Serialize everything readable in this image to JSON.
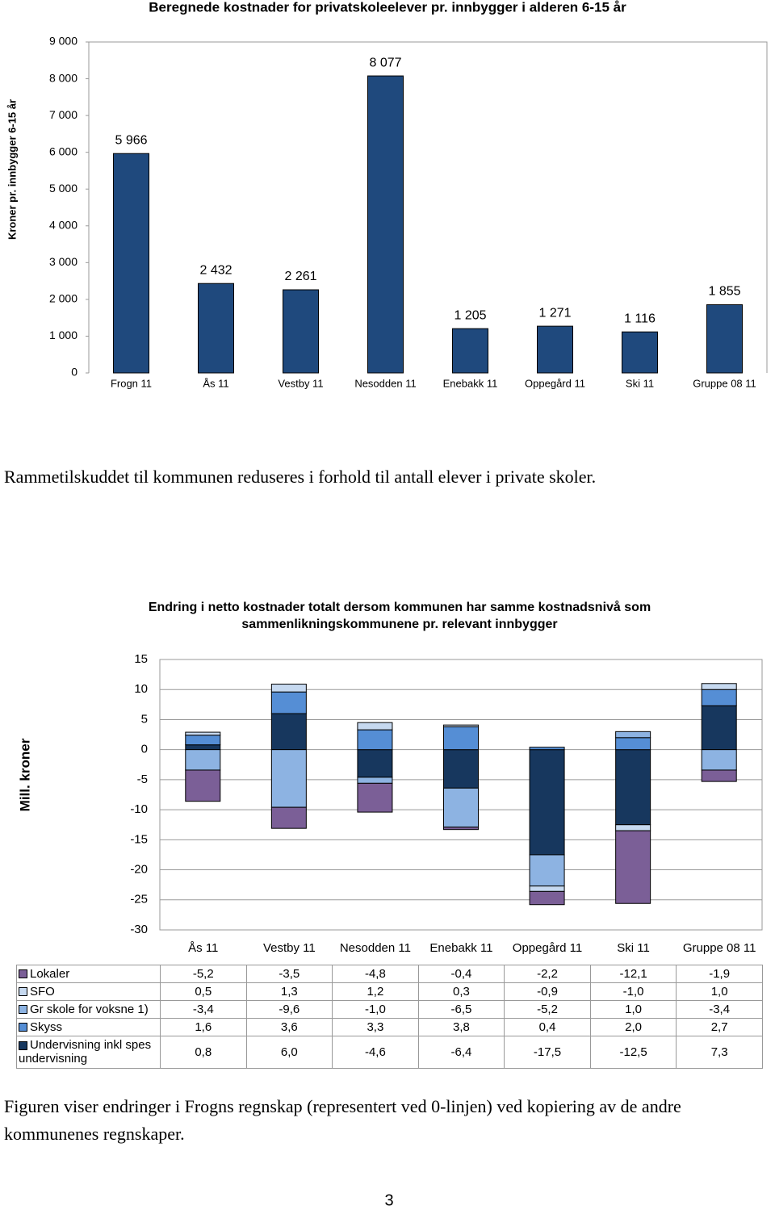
{
  "chart_data": [
    {
      "type": "bar",
      "title": "Beregnede kostnader for privatskoleelever pr. innbygger i alderen 6-15 år",
      "y_label": "Kroner pr. innbygger 6-15 år",
      "categories": [
        "Frogn 11",
        "Ås 11",
        "Vestby 11",
        "Nesodden 11",
        "Enebakk 11",
        "Oppegård 11",
        "Ski 11",
        "Gruppe 08 11"
      ],
      "values": [
        5966,
        2432,
        2261,
        8077,
        1205,
        1271,
        1116,
        1855
      ],
      "value_labels": [
        "5 966",
        "2 432",
        "2 261",
        "8 077",
        "1 205",
        "1 271",
        "1 116",
        "1 855"
      ],
      "color": "#1f497d",
      "ylim": [
        0,
        9000
      ],
      "yticks": [
        0,
        {
          "value": 1000,
          "label": "1 000"
        },
        {
          "value": 2000,
          "label": "2 000"
        },
        {
          "value": 3000,
          "label": "3 000"
        },
        {
          "value": 4000,
          "label": "4 000"
        },
        {
          "value": 5000,
          "label": "5 000"
        },
        {
          "value": 6000,
          "label": "6 000"
        },
        {
          "value": 7000,
          "label": "7 000"
        },
        {
          "value": 8000,
          "label": "8 000"
        },
        {
          "value": 9000,
          "label": "9 000"
        }
      ],
      "grid": false
    },
    {
      "type": "stacked_bar",
      "title": "Endring i netto kostnader totalt dersom kommunen har samme kostnadsnivå som sammenlikningskommunene pr. relevant innbygger",
      "y_label": "Mill. kroner",
      "categories": [
        "Ås 11",
        "Vestby 11",
        "Nesodden 11",
        "Enebakk 11",
        "Oppegård 11",
        "Ski 11",
        "Gruppe 08 11"
      ],
      "series": [
        {
          "name": "Lokaler",
          "color": "#7b5f97",
          "values": [
            -5.2,
            -3.5,
            -4.8,
            -0.4,
            -2.2,
            -12.1,
            -1.9
          ],
          "value_labels": [
            "-5,2",
            "-3,5",
            "-4,8",
            "-0,4",
            "-2,2",
            "-12,1",
            "-1,9"
          ]
        },
        {
          "name": "SFO",
          "color": "#c6d9f0",
          "values": [
            0.5,
            1.3,
            1.2,
            0.3,
            -0.9,
            -1.0,
            1.0
          ],
          "value_labels": [
            "0,5",
            "1,3",
            "1,2",
            "0,3",
            "-0,9",
            "-1,0",
            "1,0"
          ]
        },
        {
          "name": "Gr skole for voksne 1)",
          "color": "#8db3e2",
          "values": [
            -3.4,
            -9.6,
            -1.0,
            -6.5,
            -5.2,
            1.0,
            -3.4
          ],
          "value_labels": [
            "-3,4",
            "-9,6",
            "-1,0",
            "-6,5",
            "-5,2",
            "1,0",
            "-3,4"
          ]
        },
        {
          "name": "Skyss",
          "color": "#558ed5",
          "values": [
            1.6,
            3.6,
            3.3,
            3.8,
            0.4,
            2.0,
            2.7
          ],
          "value_labels": [
            "1,6",
            "3,6",
            "3,3",
            "3,8",
            "0,4",
            "2,0",
            "2,7"
          ]
        },
        {
          "name": "Undervisning inkl spes undervisning",
          "color": "#17375e",
          "values": [
            0.8,
            6.0,
            -4.6,
            -6.4,
            -17.5,
            -12.5,
            7.3
          ],
          "value_labels": [
            "0,8",
            "6,0",
            "-4,6",
            "-6,4",
            "-17,5",
            "-12,5",
            "7,3"
          ]
        }
      ],
      "ylim": [
        -30,
        15
      ],
      "yticks": [
        -30,
        -25,
        -20,
        -15,
        -10,
        -5,
        0,
        5,
        10,
        15
      ],
      "grid": true
    }
  ],
  "paragraphs": [
    "Rammetilskuddet til kommunen reduseres i forhold til antall elever i private skoler.",
    "Figuren viser endringer i Frogns regnskap (representert ved 0-linjen) ved kopiering av de andre kommunenes regnskaper."
  ],
  "page_number": 3
}
